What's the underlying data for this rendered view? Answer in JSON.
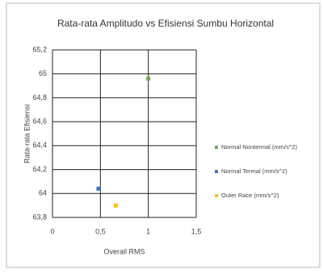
{
  "chart_data": {
    "type": "scatter",
    "title": "Rata-rata Amplitudo vs Efisiensi Sumbu Horizontal",
    "x_label": "Overall RMS",
    "y_label": "Rata-rata Efisiensi",
    "xlim": [
      0,
      1.5
    ],
    "xticks": [
      0,
      {
        "value": 0.5,
        "label": "0,5"
      },
      1,
      {
        "value": 1.5,
        "label": "1,5"
      }
    ],
    "ylim": [
      63.8,
      65.2
    ],
    "yticks": [
      {
        "value": 63.8,
        "label": "63,8"
      },
      64,
      {
        "value": 64.2,
        "label": "64,2"
      },
      {
        "value": 64.4,
        "label": "64,4"
      },
      {
        "value": 64.6,
        "label": "64,6"
      },
      {
        "value": 64.8,
        "label": "64,8"
      },
      65,
      {
        "value": 65.2,
        "label": "65,2"
      }
    ],
    "grid": true,
    "legend": "right",
    "series": [
      {
        "name": "Normal Nontermal (mm/s^2)",
        "color": "#70ad47",
        "x": [
          1
        ],
        "values": [
          64.96
        ]
      },
      {
        "name": "Normal Termal (mm/s^2)",
        "color": "#4472c4",
        "x": [
          0.48
        ],
        "values": [
          64.04
        ]
      },
      {
        "name": "Outer Race (mm/s^2)",
        "color": "#ffc000",
        "x": [
          0.66
        ],
        "values": [
          63.9
        ]
      }
    ]
  }
}
